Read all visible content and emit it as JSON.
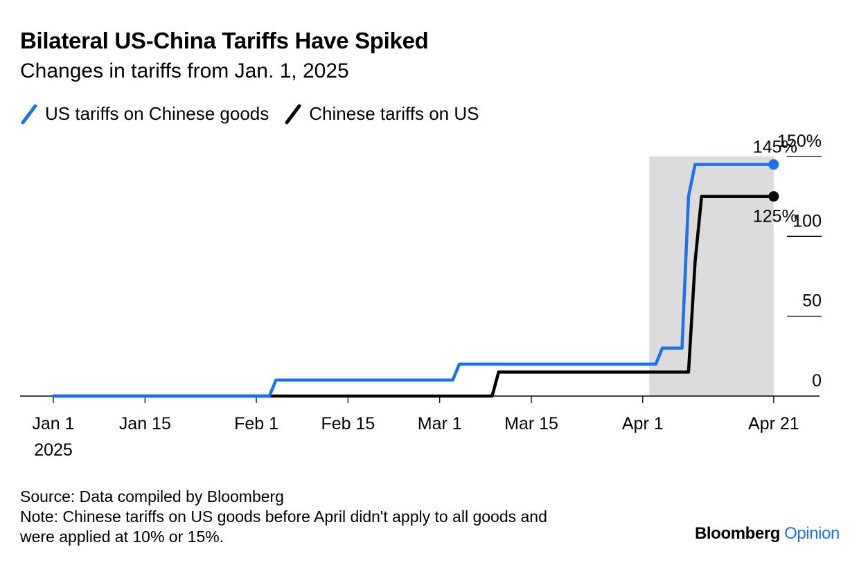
{
  "header": {
    "title": "Bilateral US-China Tariffs Have Spiked",
    "subtitle": "Changes in tariffs from Jan. 1, 2025"
  },
  "legend": {
    "items": [
      {
        "label": "US tariffs on Chinese goods",
        "color": "#1a73e8"
      },
      {
        "label": "Chinese tariffs on US",
        "color": "#000000"
      }
    ]
  },
  "chart_data": {
    "type": "line",
    "title": "Bilateral US-China Tariffs Have Spiked",
    "subtitle": "Changes in tariffs from Jan. 1, 2025",
    "xlabel": "",
    "ylabel": "",
    "x_range": [
      "2025-01-01",
      "2025-04-28"
    ],
    "ylim": [
      0,
      150
    ],
    "y_ticks": [
      {
        "value": 0,
        "label": "0"
      },
      {
        "value": 50,
        "label": "50"
      },
      {
        "value": 100,
        "label": "100"
      },
      {
        "value": 150,
        "label": "150%"
      }
    ],
    "x_ticks": [
      {
        "date": "2025-01-01",
        "label": "Jan 1",
        "sublabel": "2025"
      },
      {
        "date": "2025-01-15",
        "label": "Jan 15"
      },
      {
        "date": "2025-02-01",
        "label": "Feb 1"
      },
      {
        "date": "2025-02-15",
        "label": "Feb 15"
      },
      {
        "date": "2025-03-01",
        "label": "Mar 1"
      },
      {
        "date": "2025-03-15",
        "label": "Mar 15"
      },
      {
        "date": "2025-04-01",
        "label": "Apr 1"
      },
      {
        "date": "2025-04-21",
        "label": "Apr 21"
      }
    ],
    "highlight_range": [
      "2025-04-02",
      "2025-04-21"
    ],
    "grid": false,
    "legend_position": "top-left",
    "series": [
      {
        "name": "US tariffs on Chinese goods",
        "color": "#1a73e8",
        "end_label": "145%",
        "points": [
          [
            "2025-01-01",
            0
          ],
          [
            "2025-02-03",
            0
          ],
          [
            "2025-02-04",
            10
          ],
          [
            "2025-03-03",
            10
          ],
          [
            "2025-03-04",
            20
          ],
          [
            "2025-04-03",
            20
          ],
          [
            "2025-04-04",
            30
          ],
          [
            "2025-04-07",
            30
          ],
          [
            "2025-04-08",
            125
          ],
          [
            "2025-04-09",
            145
          ],
          [
            "2025-04-21",
            145
          ]
        ]
      },
      {
        "name": "Chinese tariffs on US",
        "color": "#000000",
        "end_label": "125%",
        "points": [
          [
            "2025-01-01",
            0
          ],
          [
            "2025-03-09",
            0
          ],
          [
            "2025-03-10",
            15
          ],
          [
            "2025-04-08",
            15
          ],
          [
            "2025-04-09",
            84
          ],
          [
            "2025-04-10",
            125
          ],
          [
            "2025-04-21",
            125
          ]
        ]
      }
    ]
  },
  "footer": {
    "source": "Source: Data compiled by Bloomberg",
    "note_line1": "Note: Chinese tariffs on US goods before April didn't apply to all goods and",
    "note_line2": "were applied at 10% or 15%."
  },
  "brand": {
    "name": "Bloomberg",
    "product": "Opinion"
  }
}
